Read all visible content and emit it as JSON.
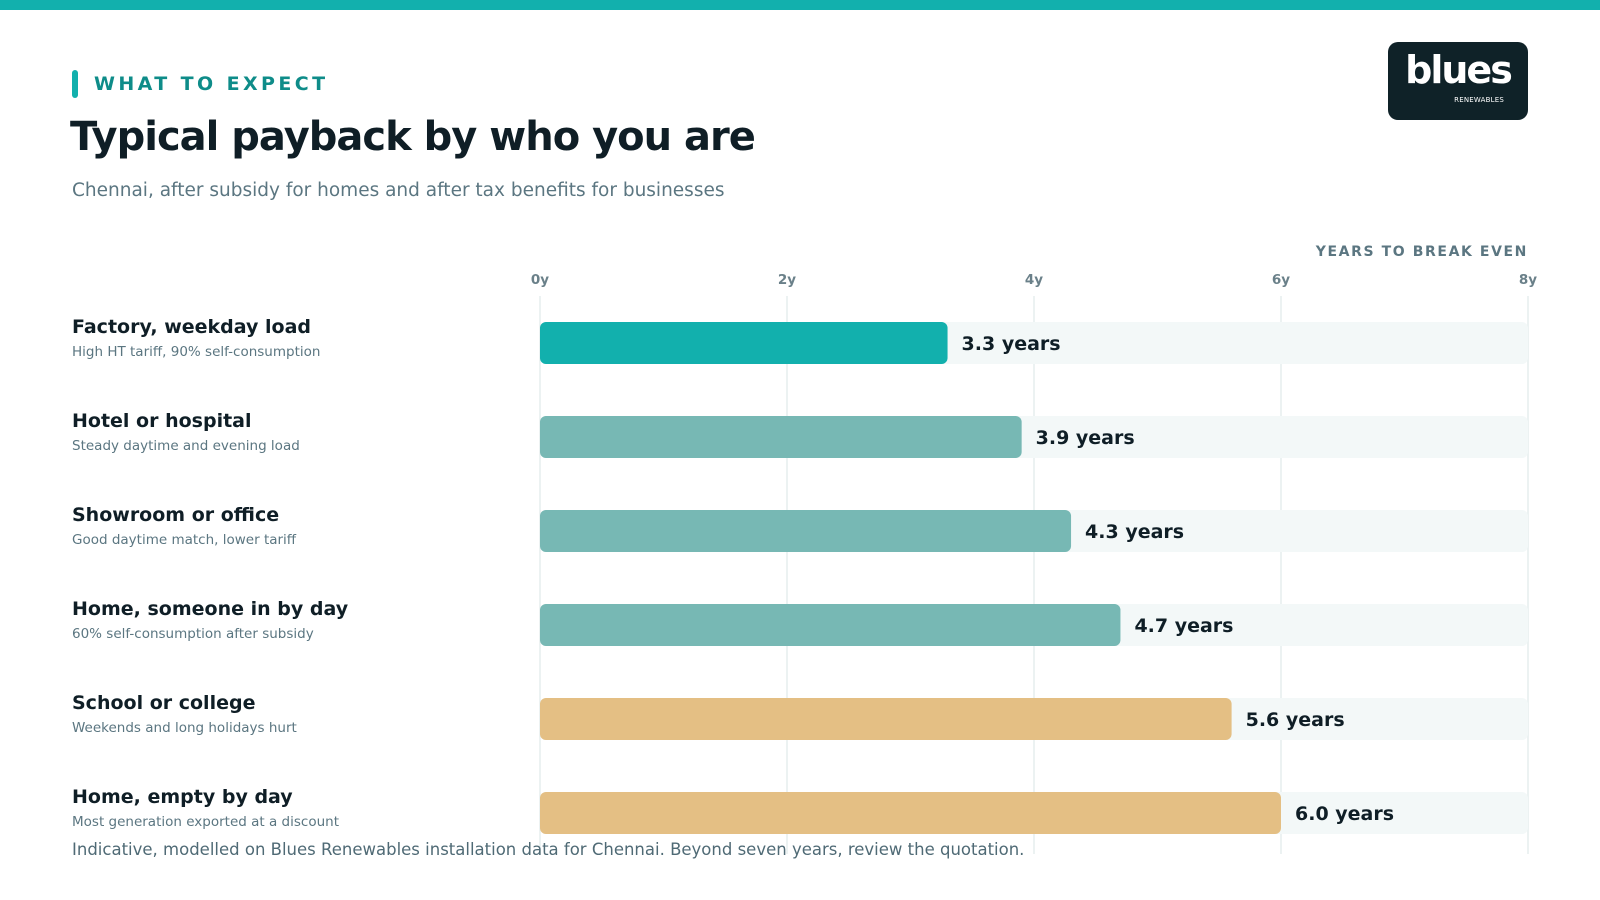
{
  "eyebrow": "WHAT TO EXPECT",
  "title": "Typical payback by who you are",
  "subtitle": "Chennai, after subsidy for homes and after tax benefits for businesses",
  "logo": {
    "word": "blues",
    "sub": "RENEWABLES"
  },
  "footnote": "Indicative, modelled on Blues Renewables installation data for Chennai. Beyond seven years, review the quotation.",
  "colors": {
    "accent": "#12b0ad",
    "mid": "#77b8b4",
    "warm": "#e4bf84",
    "track": "#f3f8f8",
    "grid": "#e5eeee"
  },
  "chart_data": {
    "type": "bar",
    "orientation": "horizontal",
    "xlabel": "YEARS TO BREAK EVEN",
    "xlim": [
      0,
      8
    ],
    "ticks": [
      {
        "value": 0,
        "label": "0y"
      },
      {
        "value": 2,
        "label": "2y"
      },
      {
        "value": 4,
        "label": "4y"
      },
      {
        "value": 6,
        "label": "6y"
      },
      {
        "value": 8,
        "label": "8y"
      }
    ],
    "grid": true,
    "bars": [
      {
        "category": "Factory, weekday load",
        "note": "High HT tariff, 90% self-consumption",
        "value": 3.3,
        "label": "3.3 years",
        "color": "#12b0ad"
      },
      {
        "category": "Hotel or hospital",
        "note": "Steady daytime and evening load",
        "value": 3.9,
        "label": "3.9 years",
        "color": "#77b8b4"
      },
      {
        "category": "Showroom or office",
        "note": "Good daytime match, lower tariff",
        "value": 4.3,
        "label": "4.3 years",
        "color": "#77b8b4"
      },
      {
        "category": "Home, someone in by day",
        "note": "60% self-consumption after subsidy",
        "value": 4.7,
        "label": "4.7 years",
        "color": "#77b8b4"
      },
      {
        "category": "School or college",
        "note": "Weekends and long holidays hurt",
        "value": 5.6,
        "label": "5.6 years",
        "color": "#e4bf84"
      },
      {
        "category": "Home, empty by day",
        "note": "Most generation exported at a discount",
        "value": 6.0,
        "label": "6.0 years",
        "color": "#e4bf84"
      }
    ]
  }
}
